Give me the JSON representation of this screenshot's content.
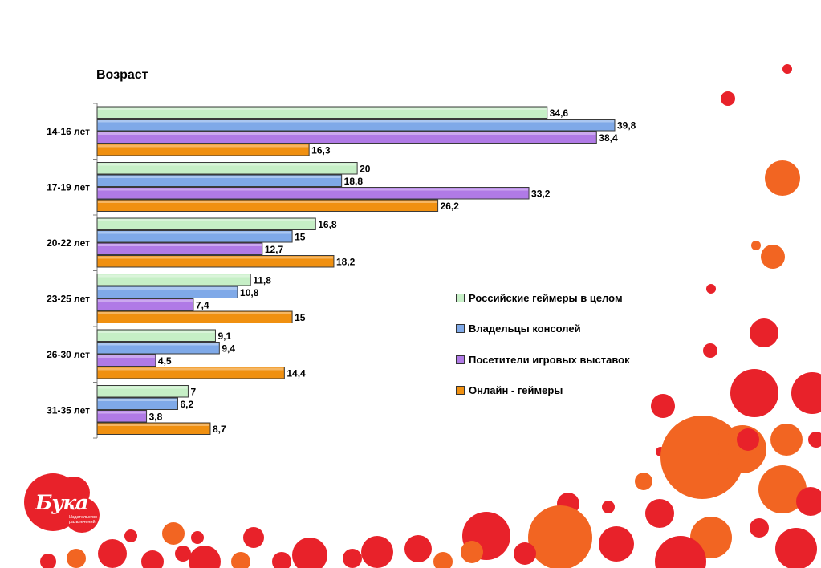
{
  "chart_data": {
    "type": "bar",
    "orientation": "horizontal",
    "title": "Возраст",
    "categories": [
      "14-16 лет",
      "17-19 лет",
      "20-22 лет",
      "23-25 лет",
      "26-30 лет",
      "31-35 лет"
    ],
    "series": [
      {
        "name": "Российские геймеры в целом",
        "color": "#c6efc6",
        "values": [
          34.6,
          20,
          16.8,
          11.8,
          9.1,
          7
        ]
      },
      {
        "name": "Владельцы консолей",
        "color": "#7fa9e8",
        "values": [
          39.8,
          18.8,
          15,
          10.8,
          9.4,
          6.2
        ]
      },
      {
        "name": "Посетители игровых выставок",
        "color": "#b07ae6",
        "values": [
          38.4,
          33.2,
          12.7,
          7.4,
          4.5,
          3.8
        ]
      },
      {
        "name": "Онлайн - геймеры",
        "color": "#f09010",
        "values": [
          16.3,
          26.2,
          18.2,
          15,
          14.4,
          8.7
        ]
      }
    ],
    "value_labels": [
      [
        "34,6",
        "20",
        "16,8",
        "11,8",
        "9,1",
        "7"
      ],
      [
        "39,8",
        "18,8",
        "15",
        "10,8",
        "9,4",
        "6,2"
      ],
      [
        "38,4",
        "33,2",
        "12,7",
        "7,4",
        "4,5",
        "3,8"
      ],
      [
        "16,3",
        "26,2",
        "18,2",
        "15",
        "14,4",
        "8,7"
      ]
    ],
    "xlim": [
      0,
      44
    ],
    "grid": false,
    "legend_position": "right"
  },
  "logo": {
    "name": "Бука",
    "subtitle": "Издательство развлечений",
    "color": "#e8222a"
  },
  "decoration_colors": [
    "#e8222a",
    "#f26522"
  ]
}
